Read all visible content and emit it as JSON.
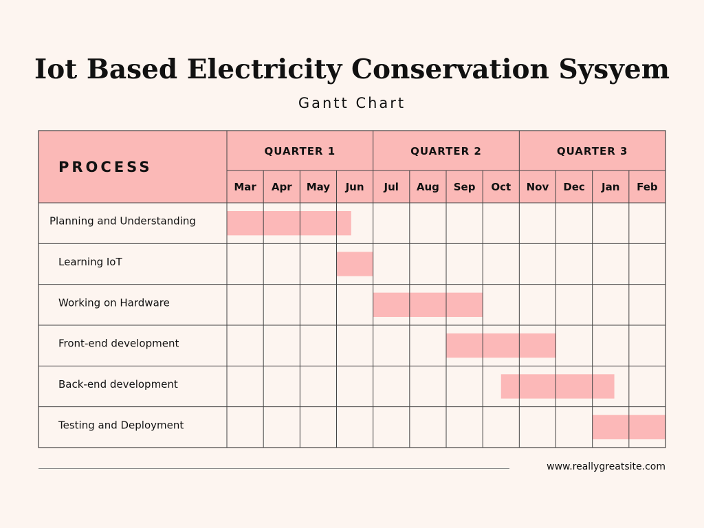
{
  "title": "Iot Based Electricity Conservation Sysyem",
  "subtitle": "Gantt Chart",
  "footer_url": "www.reallygreatsite.com",
  "colors": {
    "background": "#fdf5f0",
    "header_fill": "#fbb9b7",
    "bar_fill": "#fcb8b8",
    "grid_line": "#444444"
  },
  "chart_data": {
    "type": "gantt",
    "process_header": "PROCESS",
    "quarters": [
      {
        "label": "QUARTER 1",
        "months": [
          "Mar",
          "Apr",
          "May",
          "Jun"
        ]
      },
      {
        "label": "QUARTER 2",
        "months": [
          "Jul",
          "Aug",
          "Sep",
          "Oct"
        ]
      },
      {
        "label": "QUARTER 3",
        "months": [
          "Nov",
          "Dec",
          "Jan",
          "Feb"
        ]
      }
    ],
    "months": [
      "Mar",
      "Apr",
      "May",
      "Jun",
      "Jul",
      "Aug",
      "Sep",
      "Oct",
      "Nov",
      "Dec",
      "Jan",
      "Feb"
    ],
    "tasks": [
      {
        "name": "Planning and Understanding",
        "start_month": 0,
        "end_month": 3.4
      },
      {
        "name": "Learning IoT",
        "start_month": 3.0,
        "end_month": 4.0
      },
      {
        "name": "Working on Hardware",
        "start_month": 4.0,
        "end_month": 7.0
      },
      {
        "name": "Front-end development",
        "start_month": 6.0,
        "end_month": 9.0
      },
      {
        "name": "Back-end development",
        "start_month": 7.5,
        "end_month": 10.6
      },
      {
        "name": "Testing and Deployment",
        "start_month": 10.0,
        "end_month": 12.0
      }
    ]
  }
}
